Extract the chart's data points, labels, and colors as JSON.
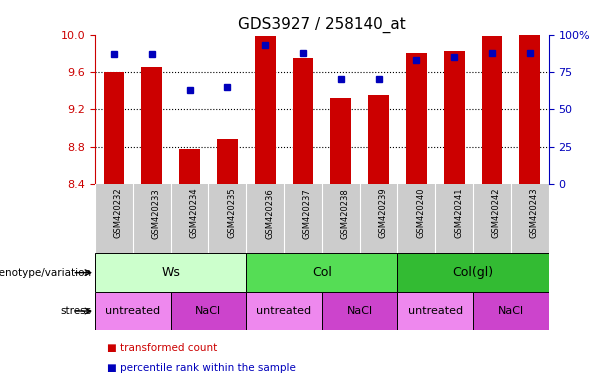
{
  "title": "GDS3927 / 258140_at",
  "samples": [
    "GSM420232",
    "GSM420233",
    "GSM420234",
    "GSM420235",
    "GSM420236",
    "GSM420237",
    "GSM420238",
    "GSM420239",
    "GSM420240",
    "GSM420241",
    "GSM420242",
    "GSM420243"
  ],
  "bar_values": [
    9.6,
    9.65,
    8.78,
    8.88,
    9.98,
    9.75,
    9.32,
    9.35,
    9.8,
    9.82,
    9.98,
    10.0
  ],
  "bar_bottom": 8.4,
  "percentile_values": [
    87,
    87,
    63,
    65,
    93,
    88,
    70,
    70,
    83,
    85,
    88,
    88
  ],
  "ylim_left": [
    8.4,
    10.0
  ],
  "ylim_right": [
    0,
    100
  ],
  "yticks_left": [
    8.4,
    8.8,
    9.2,
    9.6,
    10.0
  ],
  "yticks_right": [
    0,
    25,
    50,
    75,
    100
  ],
  "ytick_labels_right": [
    "0",
    "25",
    "50",
    "75",
    "100%"
  ],
  "bar_color": "#cc0000",
  "dot_color": "#0000bb",
  "genotype_groups": [
    {
      "label": "Ws",
      "start": 0,
      "end": 3,
      "color": "#ccffcc"
    },
    {
      "label": "Col",
      "start": 4,
      "end": 7,
      "color": "#55dd55"
    },
    {
      "label": "Col(gl)",
      "start": 8,
      "end": 11,
      "color": "#33bb33"
    }
  ],
  "stress_groups": [
    {
      "label": "untreated",
      "start": 0,
      "end": 1,
      "color": "#ee88ee"
    },
    {
      "label": "NaCl",
      "start": 2,
      "end": 3,
      "color": "#cc44cc"
    },
    {
      "label": "untreated",
      "start": 4,
      "end": 5,
      "color": "#ee88ee"
    },
    {
      "label": "NaCl",
      "start": 6,
      "end": 7,
      "color": "#cc44cc"
    },
    {
      "label": "untreated",
      "start": 8,
      "end": 9,
      "color": "#ee88ee"
    },
    {
      "label": "NaCl",
      "start": 10,
      "end": 11,
      "color": "#cc44cc"
    }
  ],
  "legend_items": [
    {
      "label": "transformed count",
      "color": "#cc0000"
    },
    {
      "label": "percentile rank within the sample",
      "color": "#0000bb"
    }
  ],
  "xlabel_genotype": "genotype/variation",
  "xlabel_stress": "stress",
  "bar_width": 0.55,
  "sample_bg_color": "#cccccc",
  "spine_left_color": "#cc0000",
  "spine_right_color": "#0000bb"
}
